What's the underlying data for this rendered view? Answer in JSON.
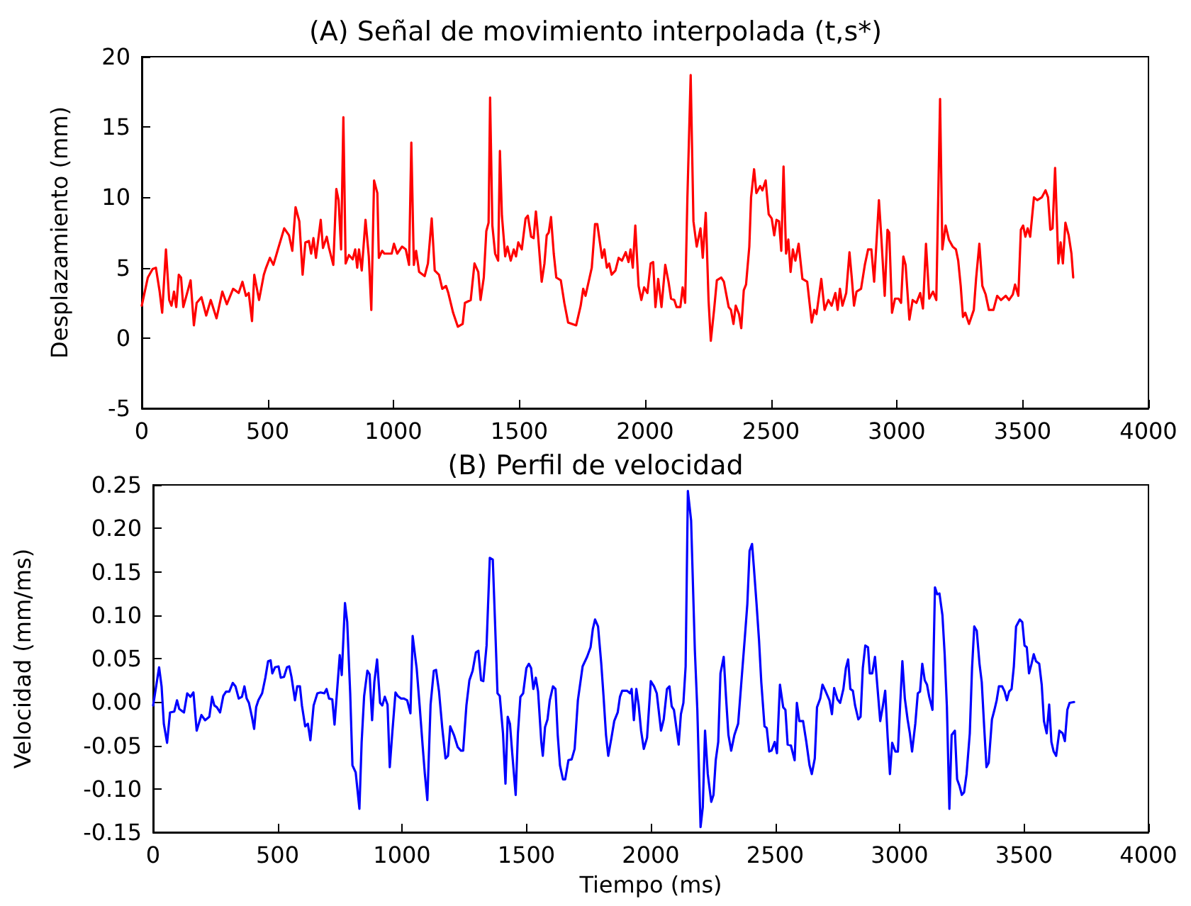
{
  "chart_data": [
    {
      "type": "line",
      "title": "(A) Señal de movimiento interpolada (t,s*)",
      "ylabel": "Desplazamiento (mm)",
      "xlim": [
        0,
        4000
      ],
      "ylim": [
        -5,
        20
      ],
      "xticks": [
        0,
        500,
        1000,
        1500,
        2000,
        2500,
        3000,
        3500,
        4000
      ],
      "yticks": [
        -5,
        0,
        5,
        10,
        15,
        20
      ],
      "grid": false,
      "series": [
        {
          "color": "#ff0000",
          "x": [
            0,
            24,
            43,
            56,
            71,
            81,
            96,
            109,
            118,
            128,
            137,
            147,
            156,
            165,
            194,
            207,
            218,
            237,
            256,
            274,
            297,
            320,
            338,
            363,
            385,
            400,
            414,
            425,
            438,
            447,
            466,
            485,
            494,
            509,
            523,
            541,
            566,
            585,
            598,
            611,
            626,
            639,
            650,
            664,
            673,
            682,
            692,
            711,
            720,
            735,
            744,
            761,
            773,
            782,
            792,
            801,
            810,
            823,
            838,
            848,
            856,
            863,
            874,
            889,
            902,
            912,
            923,
            936,
            942,
            955,
            964,
            993,
            1002,
            1015,
            1034,
            1049,
            1062,
            1071,
            1081,
            1090,
            1102,
            1124,
            1137,
            1152,
            1164,
            1181,
            1194,
            1209,
            1218,
            1237,
            1256,
            1275,
            1284,
            1307,
            1322,
            1337,
            1346,
            1359,
            1369,
            1378,
            1384,
            1393,
            1404,
            1416,
            1423,
            1431,
            1444,
            1453,
            1466,
            1478,
            1487,
            1496,
            1510,
            1525,
            1534,
            1547,
            1557,
            1566,
            1575,
            1589,
            1600,
            1609,
            1617,
            1626,
            1637,
            1647,
            1665,
            1679,
            1694,
            1726,
            1744,
            1754,
            1763,
            1788,
            1801,
            1810,
            1829,
            1838,
            1848,
            1857,
            1867,
            1882,
            1895,
            1908,
            1923,
            1934,
            1942,
            1951,
            1961,
            1974,
            1985,
            1996,
            2009,
            2022,
            2032,
            2041,
            2052,
            2065,
            2080,
            2093,
            2103,
            2116,
            2125,
            2140,
            2149,
            2159,
            2168,
            2181,
            2192,
            2205,
            2220,
            2229,
            2241,
            2252,
            2261,
            2274,
            2285,
            2302,
            2313,
            2332,
            2341,
            2351,
            2360,
            2373,
            2382,
            2392,
            2401,
            2414,
            2421,
            2433,
            2442,
            2457,
            2466,
            2479,
            2491,
            2503,
            2513,
            2522,
            2532,
            2541,
            2550,
            2560,
            2569,
            2578,
            2587,
            2597,
            2610,
            2625,
            2644,
            2662,
            2672,
            2681,
            2700,
            2713,
            2728,
            2741,
            2756,
            2765,
            2774,
            2784,
            2799,
            2812,
            2821,
            2830,
            2840,
            2858,
            2873,
            2886,
            2899,
            2910,
            2920,
            2929,
            2938,
            2952,
            2963,
            2970,
            2981,
            2993,
            3007,
            3017,
            3026,
            3035,
            3050,
            3063,
            3078,
            3093,
            3104,
            3116,
            3129,
            3144,
            3157,
            3172,
            3181,
            3194,
            3207,
            3222,
            3235,
            3244,
            3254,
            3263,
            3272,
            3287,
            3306,
            3315,
            3328,
            3340,
            3353,
            3366,
            3384,
            3399,
            3414,
            3433,
            3446,
            3461,
            3470,
            3483,
            3493,
            3502,
            3511,
            3520,
            3530,
            3545,
            3558,
            3576,
            3591,
            3601,
            3610,
            3619,
            3629,
            3642,
            3651,
            3660,
            3670,
            3683,
            3694,
            3701
          ],
          "values": [
            2.3,
            4.3,
            4.9,
            5,
            3.3,
            1.8,
            6.3,
            2.7,
            2.3,
            3.3,
            2.2,
            4.5,
            4.3,
            2.2,
            4.1,
            0.9,
            2.5,
            2.9,
            1.6,
            2.7,
            1.4,
            3.3,
            2.4,
            3.5,
            3.2,
            4,
            3,
            3.2,
            1.2,
            4.5,
            2.7,
            4.5,
            5,
            5.7,
            5.2,
            6.3,
            7.8,
            7.3,
            6.2,
            9.3,
            8.3,
            4.5,
            6.8,
            6.9,
            6,
            7.1,
            5.7,
            8.4,
            6.4,
            7.2,
            6.4,
            5.2,
            10.6,
            9.8,
            6.3,
            15.7,
            5.3,
            5.9,
            5.6,
            6.3,
            5,
            6.3,
            4.8,
            8.4,
            5.8,
            2,
            11.2,
            10.3,
            5.7,
            6.2,
            6,
            6,
            6.7,
            6,
            6.5,
            6.3,
            5.2,
            13.9,
            5.2,
            6.2,
            4.7,
            4.4,
            5.3,
            8.5,
            4.8,
            4.5,
            3.5,
            3.7,
            3.2,
            1.8,
            0.8,
            1,
            2.5,
            2.7,
            5.3,
            4.7,
            2.7,
            4.3,
            7.6,
            8.2,
            17.1,
            8,
            6,
            5.5,
            13.3,
            8.7,
            5.8,
            6.5,
            5.5,
            6.3,
            5.8,
            6.8,
            6.3,
            8.5,
            8.7,
            7.2,
            7.1,
            9,
            7.2,
            4,
            5.3,
            7.3,
            7.5,
            8.6,
            6,
            4.3,
            4.1,
            2.5,
            1.1,
            0.9,
            2.3,
            3.5,
            3,
            5,
            8.1,
            8.1,
            5.7,
            6.3,
            5,
            5.3,
            4.5,
            4.8,
            5.7,
            5.5,
            6.1,
            5.4,
            6.3,
            5,
            8,
            3.7,
            2.7,
            3.6,
            3.2,
            5.3,
            5.4,
            2.2,
            4.2,
            2.2,
            5.2,
            4,
            2.8,
            2.7,
            2.2,
            2.2,
            3.6,
            2.5,
            10,
            18.7,
            8.3,
            6.5,
            7.8,
            5.7,
            8.9,
            2.7,
            -0.2,
            2,
            4.1,
            4.3,
            4,
            2.2,
            2,
            1,
            2.3,
            1.7,
            0.7,
            3.4,
            3.8,
            6.5,
            10,
            12,
            10.3,
            10.8,
            10.5,
            11.2,
            8.8,
            8.5,
            7.3,
            8.4,
            8.3,
            6.2,
            12.2,
            6,
            7,
            4.7,
            6.3,
            5.5,
            6.7,
            4.2,
            4,
            1.1,
            2,
            1.7,
            4.2,
            2,
            2.7,
            2.3,
            3.2,
            2,
            3.5,
            2.3,
            3.2,
            6.1,
            4.3,
            2.3,
            3.3,
            3.5,
            5.2,
            6.3,
            6.3,
            4,
            7,
            9.8,
            7.3,
            3,
            7.7,
            7.5,
            1.8,
            2.8,
            2.8,
            2.5,
            5.8,
            5.2,
            1.3,
            2.7,
            2.5,
            3.2,
            2.1,
            6.7,
            2.8,
            3.3,
            2.7,
            17,
            6.3,
            8,
            7,
            6.5,
            6.3,
            5.5,
            3.7,
            1.5,
            1.8,
            1,
            2,
            4.2,
            6.7,
            3.7,
            3.1,
            2,
            2,
            3,
            2.7,
            3,
            2.7,
            3.1,
            3.8,
            3,
            7.7,
            8,
            7.2,
            7.8,
            7.2,
            10,
            9.8,
            10,
            10.5,
            10,
            7.7,
            7.8,
            12.1,
            5.3,
            6.8,
            5.3,
            8.2,
            7.3,
            6,
            4.3
          ]
        }
      ]
    },
    {
      "type": "line",
      "title": "(B) Perfil de velocidad",
      "xlabel": "Tiempo (ms)",
      "ylabel": "Velocidad (mm/ms)",
      "xlim": [
        0,
        4000
      ],
      "ylim": [
        -0.15,
        0.25
      ],
      "xticks": [
        0,
        500,
        1000,
        1500,
        2000,
        2500,
        3000,
        3500,
        4000
      ],
      "yticks": [
        {
          "value": -0.15,
          "label": "-0.15"
        },
        {
          "value": -0.1,
          "label": "-0.10"
        },
        {
          "value": -0.05,
          "label": "-0.05"
        },
        {
          "value": 0,
          "label": "0.00"
        },
        {
          "value": 0.05,
          "label": "0.05"
        },
        {
          "value": 0.1,
          "label": "0.10"
        },
        {
          "value": 0.15,
          "label": "0.15"
        },
        {
          "value": 0.2,
          "label": "0.20"
        },
        {
          "value": 0.25,
          "label": "0.25"
        }
      ],
      "grid": false,
      "series": [
        {
          "color": "#0000ff",
          "x": [
            0,
            24,
            34,
            43,
            56,
            68,
            85,
            96,
            105,
            124,
            137,
            150,
            162,
            175,
            194,
            209,
            226,
            237,
            246,
            256,
            269,
            282,
            293,
            306,
            320,
            331,
            344,
            357,
            367,
            376,
            385,
            397,
            406,
            414,
            423,
            438,
            451,
            462,
            472,
            479,
            490,
            504,
            513,
            526,
            538,
            547,
            556,
            570,
            579,
            590,
            598,
            611,
            622,
            632,
            645,
            660,
            673,
            688,
            697,
            707,
            720,
            729,
            739,
            750,
            758,
            771,
            780,
            792,
            801,
            814,
            829,
            838,
            848,
            861,
            870,
            880,
            889,
            900,
            912,
            921,
            931,
            942,
            951,
            961,
            974,
            983,
            996,
            1008,
            1021,
            1034,
            1043,
            1059,
            1071,
            1083,
            1092,
            1102,
            1115,
            1128,
            1137,
            1149,
            1162,
            1175,
            1185,
            1194,
            1209,
            1224,
            1237,
            1246,
            1259,
            1271,
            1284,
            1297,
            1307,
            1318,
            1327,
            1340,
            1353,
            1365,
            1374,
            1384,
            1393,
            1406,
            1416,
            1425,
            1434,
            1444,
            1457,
            1466,
            1476,
            1487,
            1500,
            1510,
            1519,
            1528,
            1538,
            1547,
            1560,
            1566,
            1575,
            1585,
            1594,
            1607,
            1617,
            1626,
            1635,
            1647,
            1656,
            1669,
            1682,
            1694,
            1707,
            1726,
            1744,
            1758,
            1767,
            1776,
            1788,
            1801,
            1810,
            1820,
            1829,
            1842,
            1853,
            1867,
            1876,
            1885,
            1904,
            1917,
            1923,
            1932,
            1942,
            1951,
            1961,
            1972,
            1985,
            2000,
            2013,
            2024,
            2041,
            2052,
            2065,
            2075,
            2084,
            2093,
            2103,
            2112,
            2121,
            2131,
            2140,
            2149,
            2162,
            2177,
            2187,
            2200,
            2209,
            2218,
            2229,
            2243,
            2252,
            2261,
            2271,
            2280,
            2293,
            2302,
            2312,
            2323,
            2336,
            2351,
            2364,
            2377,
            2388,
            2397,
            2407,
            2414,
            2425,
            2435,
            2444,
            2457,
            2466,
            2476,
            2485,
            2498,
            2507,
            2519,
            2532,
            2541,
            2550,
            2563,
            2578,
            2587,
            2597,
            2612,
            2625,
            2638,
            2647,
            2659,
            2668,
            2681,
            2690,
            2703,
            2718,
            2728,
            2737,
            2750,
            2761,
            2774,
            2784,
            2793,
            2802,
            2812,
            2821,
            2834,
            2843,
            2852,
            2862,
            2873,
            2880,
            2890,
            2901,
            2910,
            2922,
            2933,
            2942,
            2952,
            2961,
            2970,
            2983,
            2993,
            3002,
            3011,
            3021,
            3032,
            3041,
            3050,
            3063,
            3073,
            3082,
            3091,
            3101,
            3110,
            3119,
            3132,
            3142,
            3151,
            3160,
            3172,
            3181,
            3190,
            3200,
            3209,
            3222,
            3231,
            3241,
            3250,
            3259,
            3269,
            3282,
            3291,
            3300,
            3310,
            3321,
            3330,
            3340,
            3349,
            3358,
            3371,
            3381,
            3390,
            3399,
            3412,
            3422,
            3431,
            3440,
            3450,
            3459,
            3468,
            3483,
            3493,
            3502,
            3511,
            3520,
            3530,
            3539,
            3548,
            3561,
            3571,
            3580,
            3591,
            3601,
            3610,
            3619,
            3629,
            3642,
            3655,
            3664,
            3674,
            3683,
            3701
          ],
          "values": [
            -0.004,
            0.04,
            0.018,
            -0.025,
            -0.047,
            -0.012,
            -0.011,
            0.002,
            -0.008,
            -0.012,
            0.01,
            0.006,
            0.011,
            -0.033,
            -0.015,
            -0.021,
            -0.017,
            0.006,
            -0.004,
            -0.006,
            -0.012,
            0.007,
            0.012,
            0.012,
            0.022,
            0.018,
            0.004,
            0.006,
            0.018,
            0.004,
            -0.001,
            -0.017,
            -0.031,
            -0.006,
            0.002,
            0.01,
            0.028,
            0.047,
            0.048,
            0.033,
            0.04,
            0.041,
            0.028,
            0.029,
            0.04,
            0.041,
            0.029,
            0.002,
            0.018,
            0.018,
            -0.004,
            -0.028,
            -0.025,
            -0.044,
            -0.004,
            0.01,
            0.011,
            0.01,
            0.015,
            0.004,
            0.003,
            -0.026,
            0.012,
            0.054,
            0.031,
            0.114,
            0.092,
            0.01,
            -0.073,
            -0.081,
            -0.123,
            -0.046,
            0.007,
            0.036,
            0.032,
            -0.021,
            0.023,
            0.049,
            -0.001,
            -0.004,
            0.006,
            -0.003,
            -0.075,
            -0.036,
            0.011,
            0.007,
            0.004,
            0.004,
            0.002,
            -0.013,
            0.076,
            0.039,
            -0.004,
            -0.05,
            -0.083,
            -0.113,
            -0.003,
            0.036,
            0.037,
            0.012,
            -0.03,
            -0.065,
            -0.062,
            -0.028,
            -0.038,
            -0.052,
            -0.056,
            -0.056,
            -0.004,
            0.025,
            0.036,
            0.057,
            0.059,
            0.025,
            0.024,
            0.065,
            0.166,
            0.164,
            0.092,
            0.01,
            0.007,
            -0.036,
            -0.094,
            -0.017,
            -0.025,
            -0.062,
            -0.107,
            -0.036,
            0.006,
            0.01,
            0.039,
            0.044,
            0.039,
            0.015,
            0.028,
            0.012,
            -0.046,
            -0.062,
            -0.029,
            -0.02,
            0.002,
            0.018,
            0.015,
            -0.038,
            -0.073,
            -0.089,
            -0.089,
            -0.067,
            -0.066,
            -0.054,
            0.002,
            0.041,
            0.052,
            0.063,
            0.084,
            0.095,
            0.087,
            0.044,
            0.007,
            -0.038,
            -0.062,
            -0.041,
            -0.022,
            -0.012,
            0.006,
            0.013,
            0.013,
            0.01,
            0.015,
            -0.021,
            0.015,
            -0.003,
            -0.033,
            -0.054,
            -0.041,
            0.024,
            0.018,
            0.01,
            -0.033,
            -0.02,
            0.015,
            0.018,
            -0.005,
            -0.009,
            -0.03,
            -0.049,
            -0.014,
            -0.001,
            0.041,
            0.243,
            0.209,
            0.06,
            -0.009,
            -0.144,
            -0.121,
            -0.033,
            -0.083,
            -0.115,
            -0.107,
            -0.067,
            -0.046,
            0.033,
            0.052,
            0.007,
            -0.038,
            -0.056,
            -0.038,
            -0.025,
            0.023,
            0.071,
            0.113,
            0.174,
            0.182,
            0.156,
            0.113,
            0.071,
            0.023,
            -0.028,
            -0.03,
            -0.057,
            -0.056,
            -0.046,
            -0.059,
            0.02,
            -0.006,
            -0.009,
            -0.049,
            -0.05,
            -0.067,
            -0.001,
            -0.022,
            -0.022,
            -0.046,
            -0.073,
            -0.083,
            -0.065,
            -0.006,
            0.004,
            0.02,
            0.012,
            0.002,
            -0.014,
            0.016,
            0.003,
            -0.001,
            0.015,
            0.039,
            0.049,
            0.015,
            0.013,
            -0.004,
            -0.02,
            -0.017,
            0.039,
            0.065,
            0.063,
            0.033,
            0.033,
            0.052,
            0.02,
            -0.022,
            -0.004,
            0.013,
            -0.041,
            -0.083,
            -0.047,
            -0.057,
            -0.057,
            -0.004,
            0.047,
            0.004,
            -0.02,
            -0.036,
            -0.057,
            -0.025,
            0.01,
            0.012,
            0.044,
            0.025,
            0.02,
            0.006,
            -0.009,
            0.132,
            0.124,
            0.125,
            0.1,
            0.055,
            -0.006,
            -0.123,
            -0.038,
            -0.033,
            -0.089,
            -0.097,
            -0.107,
            -0.104,
            -0.083,
            -0.036,
            0.039,
            0.087,
            0.082,
            0.044,
            0.023,
            -0.03,
            -0.075,
            -0.07,
            -0.02,
            -0.009,
            0.002,
            0.018,
            0.018,
            0.012,
            0.002,
            0.012,
            0.015,
            0.041,
            0.087,
            0.095,
            0.092,
            0.065,
            0.063,
            0.033,
            0.044,
            0.055,
            0.047,
            0.044,
            0.02,
            -0.022,
            -0.036,
            -0.003,
            -0.046,
            -0.057,
            -0.062,
            -0.033,
            -0.036,
            -0.045,
            -0.009,
            -0.001,
            0
          ]
        }
      ]
    }
  ]
}
